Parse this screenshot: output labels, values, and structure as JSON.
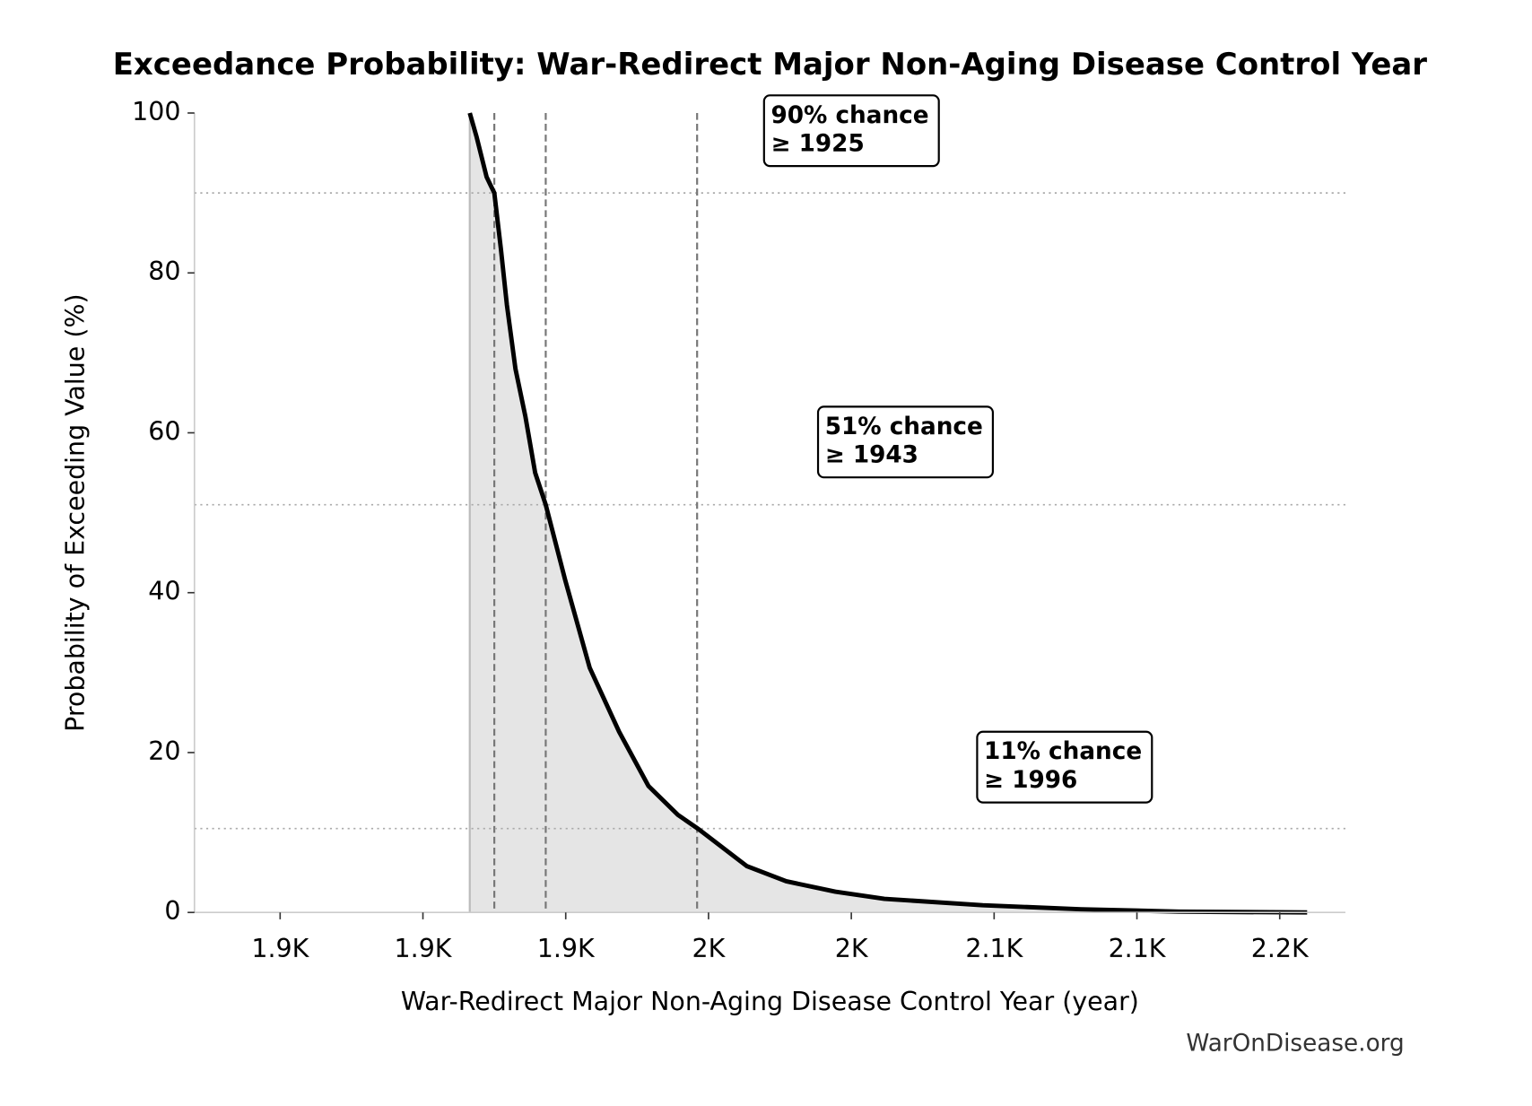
{
  "chart_data": {
    "type": "line",
    "title": "Exceedance Probability: War-Redirect Major Non-Aging Disease Control Year",
    "x_label": "War-Redirect Major Non-Aging Disease Control Year (year)",
    "y_label": "Probability of Exceeding Value (%)",
    "watermark": "WarOnDisease.org",
    "x": [
      1916.4,
      1918.8,
      1922.3,
      1925,
      1927.3,
      1929.4,
      1932.4,
      1935.9,
      1939.3,
      1943,
      1949.8,
      1958.4,
      1968.7,
      1979.0,
      1989.3,
      1996.6,
      2013.4,
      2027.2,
      2044.4,
      2061.6,
      2096,
      2130.4,
      2164.8,
      2209.6
    ],
    "series": [
      {
        "color": "#000000",
        "fill": "#e5e5e5",
        "values": [
          100,
          97,
          92,
          90,
          83,
          76,
          68,
          62,
          55,
          51,
          41.6,
          30.6,
          22.6,
          15.8,
          12.2,
          10.4,
          5.8,
          3.9,
          2.6,
          1.7,
          0.9,
          0.4,
          0.1,
          0
        ]
      }
    ],
    "xlim": [
      1820,
      2223
    ],
    "xticks": [
      {
        "value": 1850,
        "label": "1.9K"
      },
      {
        "value": 1900,
        "label": "1.9K"
      },
      {
        "value": 1950,
        "label": "1.9K"
      },
      {
        "value": 2000,
        "label": "2K"
      },
      {
        "value": 2050,
        "label": "2K"
      },
      {
        "value": 2100,
        "label": "2.1K"
      },
      {
        "value": 2150,
        "label": "2.1K"
      },
      {
        "value": 2200,
        "label": "2.2K"
      }
    ],
    "ylim": [
      0,
      100
    ],
    "yticks": [
      0,
      20,
      40,
      60,
      80,
      100
    ],
    "annotations": [
      {
        "probability": 90,
        "value": 1925,
        "label": [
          "90% chance",
          "≥ 1925"
        ]
      },
      {
        "probability": 51,
        "value": 1943,
        "label": [
          "51% chance",
          "≥ 1943"
        ]
      },
      {
        "probability": 10.5,
        "value": 1996,
        "label": [
          "11% chance",
          "≥ 1996"
        ]
      }
    ]
  }
}
